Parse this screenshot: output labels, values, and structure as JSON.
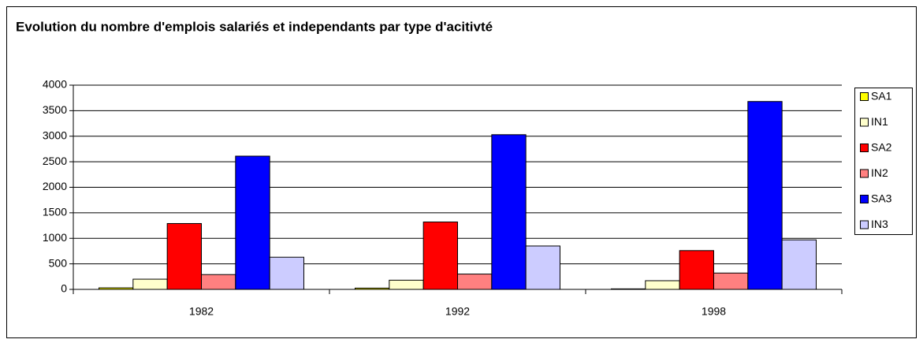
{
  "chart_data": {
    "type": "bar",
    "title": "Evolution du nombre d'emplois salariés et independants par type d'acitivté",
    "categories": [
      "1982",
      "1992",
      "1998"
    ],
    "series": [
      {
        "name": "SA1",
        "color": "#ffff00",
        "values": [
          30,
          25,
          10
        ]
      },
      {
        "name": "IN1",
        "color": "#ffffcc",
        "values": [
          200,
          180,
          170
        ]
      },
      {
        "name": "SA2",
        "color": "#ff0000",
        "values": [
          1290,
          1320,
          760
        ]
      },
      {
        "name": "IN2",
        "color": "#ff8080",
        "values": [
          290,
          300,
          320
        ]
      },
      {
        "name": "SA3",
        "color": "#0000ff",
        "values": [
          2610,
          3030,
          3680
        ]
      },
      {
        "name": "IN3",
        "color": "#ccccff",
        "values": [
          630,
          850,
          970
        ]
      }
    ],
    "ylim": [
      0,
      4000
    ],
    "yticks": [
      0,
      500,
      1000,
      1500,
      2000,
      2500,
      3000,
      3500,
      4000
    ],
    "grid": true,
    "legend": "right"
  }
}
